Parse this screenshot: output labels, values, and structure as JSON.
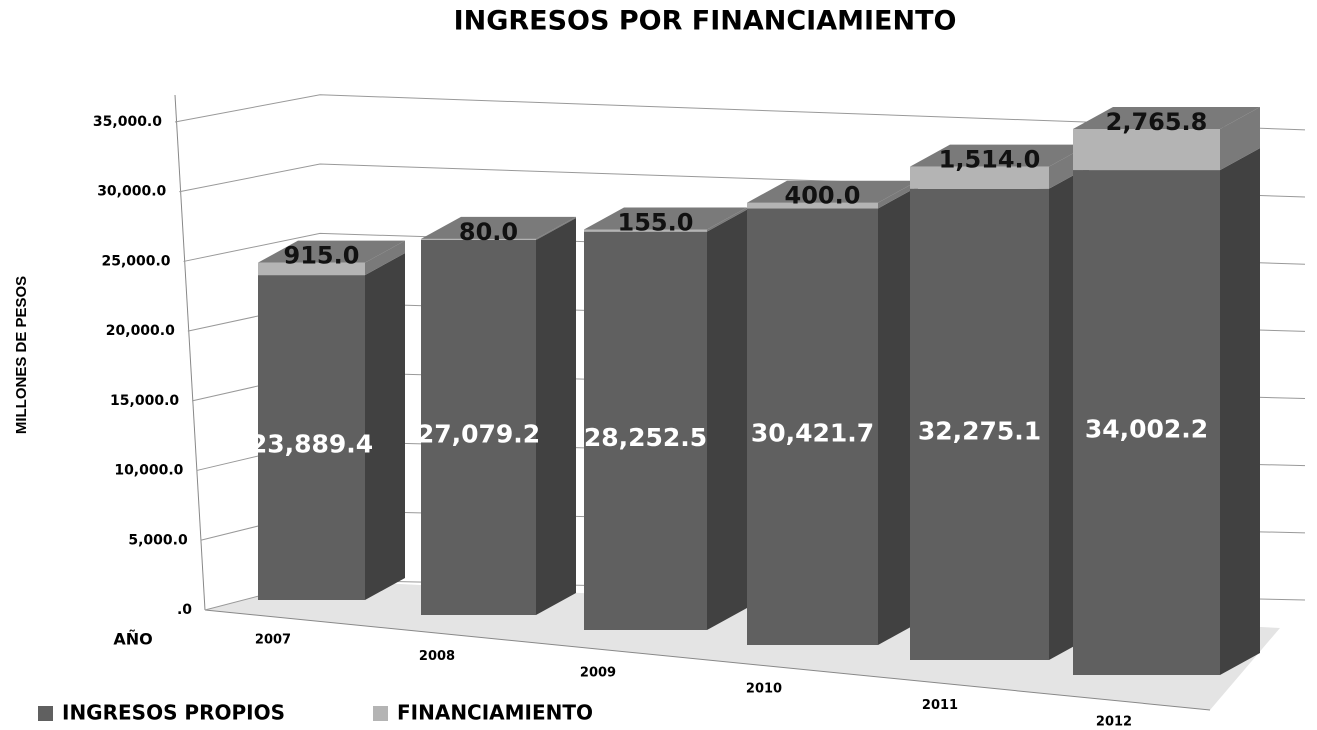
{
  "chart_data": {
    "type": "bar",
    "stacked": true,
    "title": "INGRESOS POR FINANCIAMIENTO",
    "y_label": "MILLONES DE PESOS",
    "x_label": "AÑO",
    "categories": [
      "2007",
      "2008",
      "2009",
      "2010",
      "2011",
      "2012"
    ],
    "series": [
      {
        "name": "INGRESOS PROPIOS",
        "color": "#606060",
        "values": [
          23889.4,
          27079.2,
          28252.5,
          30421.7,
          32275.1,
          34002.2
        ],
        "value_labels": [
          "23,889.4",
          "27,079.2",
          "28,252.5",
          "30,421.7",
          "32,275.1",
          "34,002.2"
        ]
      },
      {
        "name": "FINANCIAMIENTO",
        "color": "#b4b4b4",
        "values": [
          915.0,
          80.0,
          155.0,
          400.0,
          1514.0,
          2765.8
        ],
        "value_labels": [
          "915.0",
          "80.0",
          "155.0",
          "400.0",
          "1,514.0",
          "2,765.8"
        ]
      }
    ],
    "ylim": [
      0,
      37000
    ],
    "yticks": [
      {
        "value": 0,
        "label": ".0"
      },
      {
        "value": 5000,
        "label": "5,000.0"
      },
      {
        "value": 10000,
        "label": "10,000.0"
      },
      {
        "value": 15000,
        "label": "15,000.0"
      },
      {
        "value": 20000,
        "label": "20,000.0"
      },
      {
        "value": 25000,
        "label": "25,000.0"
      },
      {
        "value": 30000,
        "label": "30,000.0"
      },
      {
        "value": 35000,
        "label": "35,000.0"
      }
    ],
    "grid": true,
    "legend": "bottom-left"
  }
}
